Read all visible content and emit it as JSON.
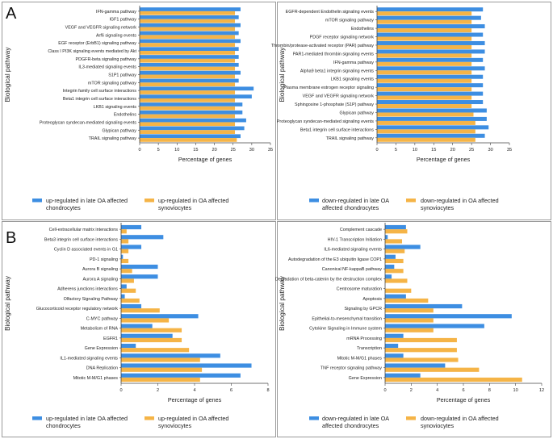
{
  "panels": {
    "a_label": "A",
    "b_label": "B"
  },
  "colors": {
    "blue": "#3d8ee2",
    "orange": "#f5b447",
    "axis": "#444444",
    "frame": "#9a9a9a"
  },
  "chart_data": [
    {
      "type": "bar",
      "orientation": "horizontal",
      "categories": [
        "IFN-gamma pathway",
        "IGF1 pathway",
        "VEGF and VEGFR signaling network",
        "Arf6 signaling events",
        "EGF receptor (ErbB1) signaling pathway",
        "Class I PI3K signaling events mediated by Akt",
        "PDGFR-beta signaling pathway",
        "IL3-mediated signaling events",
        "S1P1 pathway",
        "mTOR signaling pathway",
        "Integrin family cell surface interactions",
        "Beta1 integrin cell surface interactions",
        "LKB1 signaling events",
        "Endothelins",
        "Proteoglycan syndecan-mediated signaling events",
        "Glypican pathway",
        "TRAIL signaling pathway"
      ],
      "series": [
        {
          "name": "up-regulated in late OA affected chondrocytes",
          "color": "#3d8ee2",
          "values": [
            27,
            26.5,
            27,
            26.5,
            27,
            26.5,
            26.5,
            26.5,
            27,
            26.5,
            30.5,
            30,
            27.5,
            27.5,
            28.5,
            28,
            27
          ]
        },
        {
          "name": "up-regulated in OA affected synoviocytes",
          "color": "#f5b447",
          "values": [
            25.5,
            25.5,
            25.5,
            25.5,
            25.5,
            25.5,
            25.5,
            25.5,
            25.5,
            25.5,
            25.5,
            25.5,
            25.5,
            25.5,
            25.5,
            25.5,
            26
          ]
        }
      ],
      "xlabel": "Percentage of genes",
      "ylabel": "Biological pathway",
      "xlim": [
        0,
        35
      ],
      "xticks": [
        "0",
        "5",
        "10",
        "15",
        "20",
        "25",
        "30",
        "35"
      ]
    },
    {
      "type": "bar",
      "orientation": "horizontal",
      "categories": [
        "EGFR-dependent Endothelin signaling events",
        "mTOR signaling pathway",
        "Endothelins",
        "PDGF receptor signaling network",
        "Thrombin/protease-activated receptor (PAR) pathway",
        "PAR1-mediated thrombin signaling events",
        "IFN-gamma pathway",
        "Alpha9 beta1 integrin signaling events",
        "LKB1 signaling events",
        "Plasma membrane estrogen receptor signaling",
        "VEGF and VEGFR signaling network",
        "Sphingosine 1-phosphate (S1P) pathway",
        "Glypican pathway",
        "Proteoglycan syndecan-mediated signaling events",
        "Beta1 integrin cell surface interactions",
        "TRAIL signaling pathway"
      ],
      "series": [
        {
          "name": "down-regulated in late OA affected chondrocytes",
          "color": "#3d8ee2",
          "values": [
            28,
            27.5,
            28.5,
            28,
            28.5,
            28.5,
            28,
            28.5,
            28,
            28,
            28,
            28,
            29,
            29,
            29.5,
            28.5
          ]
        },
        {
          "name": "down-regulated in OA affected synoviocytes",
          "color": "#f5b447",
          "values": [
            25,
            25,
            25,
            25,
            25,
            25,
            25,
            25,
            25,
            25,
            25,
            25,
            25.5,
            26,
            26,
            26
          ]
        }
      ],
      "xlabel": "Percentage of genes",
      "ylabel": "Biological pathway",
      "xlim": [
        0,
        35
      ],
      "xticks": [
        "0",
        "5",
        "10",
        "15",
        "20",
        "25",
        "30",
        "35"
      ]
    },
    {
      "type": "bar",
      "orientation": "horizontal",
      "categories": [
        "Cell-extracellular matrix interactions",
        "Beta3 integrin cell surface interactions",
        "Cyclin D associated events in G1",
        "PD-1 signaling",
        "Aurora B signaling",
        "Aurora A signaling",
        "Adherens junctions interactions",
        "Olfactory Signaling Pathway",
        "Glucocorticoid receptor regulatory network",
        "C-MYC pathway",
        "Metabolism of RNA",
        "EGFR1",
        "Gene Expression",
        "IL1-mediated signaling events",
        "DNA Replication",
        "Mitotic M-M/G1 phases"
      ],
      "series": [
        {
          "name": "up-regulated in late OA affected chondrocytes",
          "color": "#3d8ee2",
          "values": [
            1.1,
            2.3,
            1.1,
            0.1,
            2.0,
            2.0,
            0.3,
            0.2,
            1.1,
            4.2,
            1.7,
            2.8,
            0.8,
            5.4,
            7.1,
            6.5
          ]
        },
        {
          "name": "up-regulated in OA affected synoviocytes",
          "color": "#f5b447",
          "values": [
            0.3,
            0.4,
            0.4,
            0.4,
            0.6,
            0.7,
            0.8,
            1.0,
            2.1,
            2.6,
            3.3,
            3.3,
            3.7,
            4.3,
            4.4,
            4.3
          ]
        }
      ],
      "xlabel": "Percentage of genes",
      "ylabel": "Biological pathway",
      "xlim": [
        0,
        8
      ],
      "xticks": [
        "0",
        "2",
        "4",
        "6",
        "8"
      ]
    },
    {
      "type": "bar",
      "orientation": "horizontal",
      "categories": [
        "Complement cascade",
        "HIV-1 Transcription Initiation",
        "IL6-mediated signaling events",
        "Autodegradation of the E3 ubiquitin ligase COP1",
        "Canonical NF-kappaB pathway",
        "Degradation of beta-catenin by the destruction complex",
        "Centrosome maturation",
        "Apoptosis",
        "Signaling by GPCR",
        "Epithelial-to-mesenchymal transition",
        "Cytokine Signaling in Immune system",
        "mRNA Processing",
        "Transcription",
        "Mitotic M-M/G1 phases",
        "TNF receptor signaling pathway",
        "Gene Expression"
      ],
      "series": [
        {
          "name": "down-regulated in late OA affected chondrocytes",
          "color": "#3d8ee2",
          "values": [
            1.6,
            0.2,
            2.7,
            0.8,
            0.7,
            0.5,
            0.0,
            1.6,
            5.9,
            9.7,
            7.6,
            1.4,
            1.0,
            1.4,
            4.6,
            2.7
          ]
        },
        {
          "name": "down-regulated in OA affected synoviocytes",
          "color": "#f5b447",
          "values": [
            1.7,
            1.3,
            1.5,
            1.4,
            1.4,
            1.7,
            2.0,
            3.3,
            3.7,
            3.7,
            3.7,
            5.5,
            5.5,
            5.6,
            7.2,
            10.5
          ]
        }
      ],
      "xlabel": "Percentage of genes",
      "ylabel": "Biological pathway",
      "xlim": [
        0,
        12
      ],
      "xticks": [
        "0",
        "2",
        "4",
        "6",
        "8",
        "10",
        "12"
      ]
    }
  ]
}
